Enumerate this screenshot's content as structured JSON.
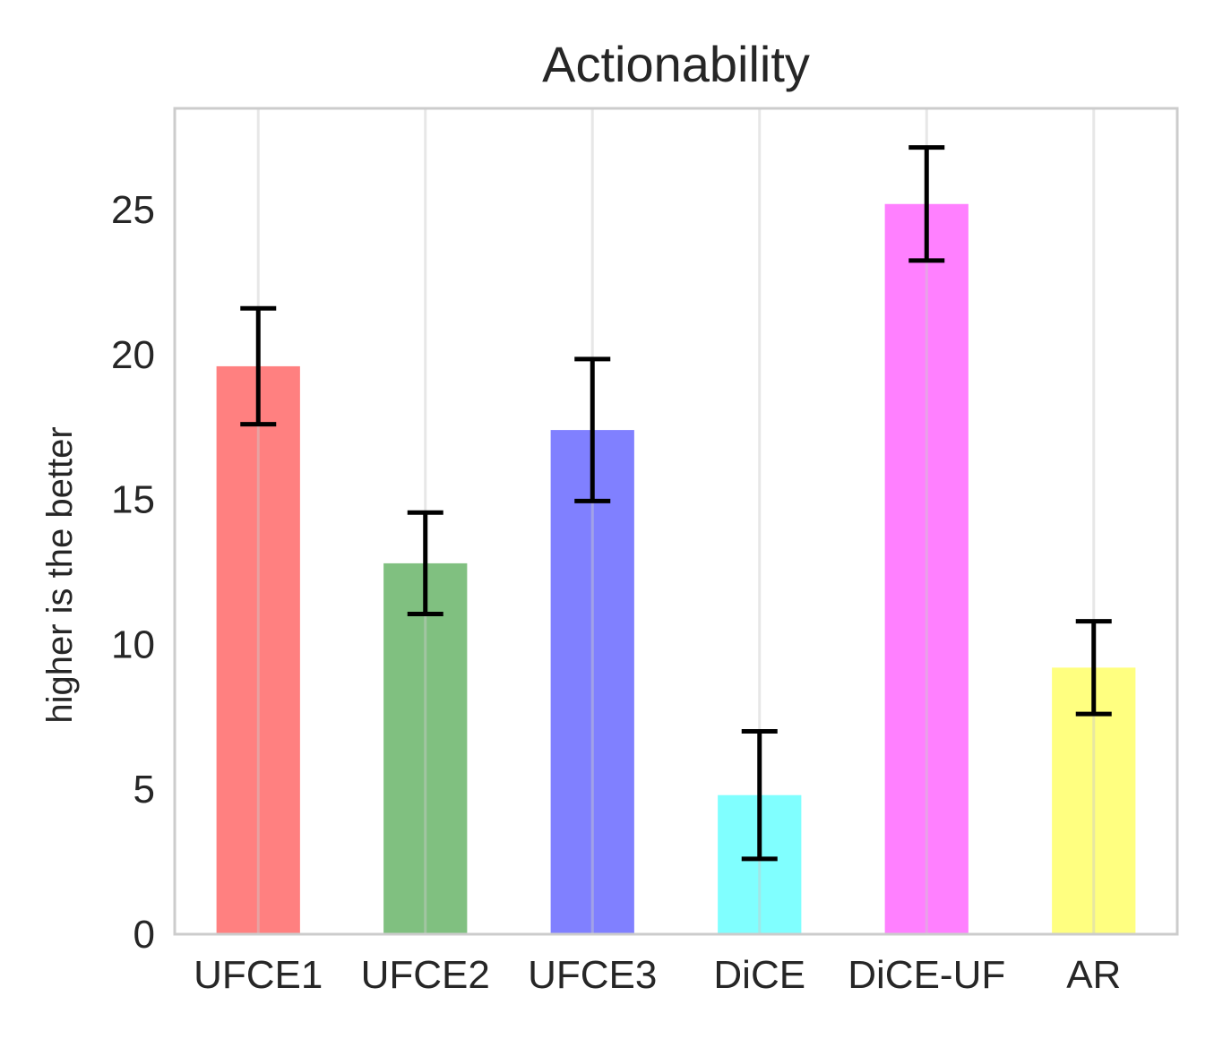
{
  "chart_data": {
    "type": "bar",
    "title": "Actionability",
    "xlabel": "",
    "ylabel": "higher is the better",
    "categories": [
      "UFCE1",
      "UFCE2",
      "UFCE3",
      "DiCE",
      "DiCE-UF",
      "AR"
    ],
    "values": [
      19.6,
      12.8,
      17.4,
      4.8,
      25.2,
      9.2
    ],
    "errors": [
      2.0,
      1.75,
      2.45,
      2.2,
      1.95,
      1.6
    ],
    "colors": [
      "#ff8080",
      "#80c080",
      "#8080ff",
      "#80ffff",
      "#ff80ff",
      "#ffff80"
    ],
    "ylim": [
      0,
      28.5
    ],
    "yticks": [
      0,
      5,
      10,
      15,
      20,
      25
    ],
    "grid": "vertical"
  }
}
